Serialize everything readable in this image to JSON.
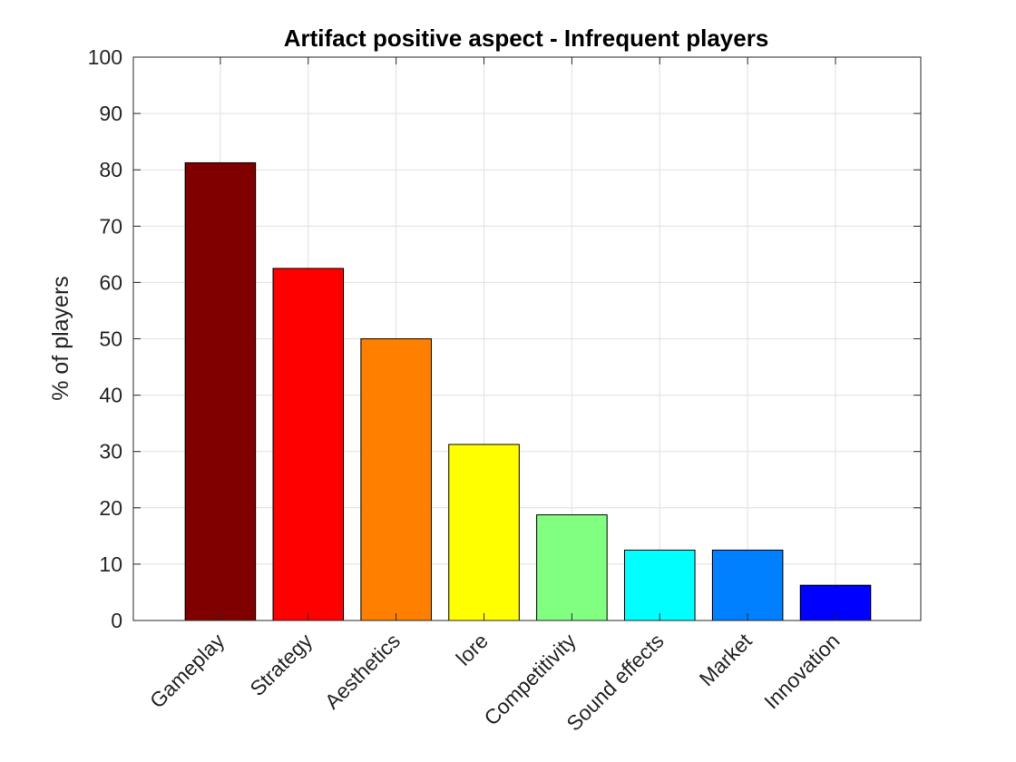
{
  "chart_data": {
    "type": "bar",
    "title": "Artifact positive aspect - Infrequent players",
    "xlabel": "",
    "ylabel": "% of players",
    "categories": [
      "Gameplay",
      "Strategy",
      "Aesthetics",
      "lore",
      "Competitivity",
      "Sound effects",
      "Market",
      "Innovation"
    ],
    "values": [
      81.25,
      62.5,
      50,
      31.25,
      18.75,
      12.5,
      12.5,
      6.25
    ],
    "colors": [
      "#800000",
      "#ff0000",
      "#ff8000",
      "#ffff00",
      "#80ff80",
      "#00ffff",
      "#0080ff",
      "#0000ff"
    ],
    "ylim": [
      0,
      100
    ],
    "yticks": [
      0,
      10,
      20,
      30,
      40,
      50,
      60,
      70,
      80,
      90,
      100
    ],
    "grid": true,
    "legend": false
  }
}
